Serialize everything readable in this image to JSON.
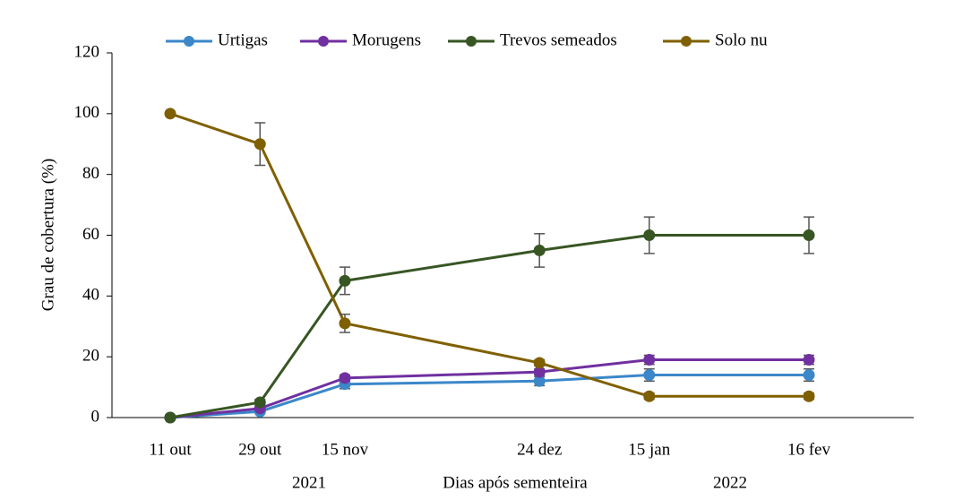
{
  "chart_data": {
    "type": "line",
    "x": [
      "11 out",
      "29 out",
      "15 nov",
      "24 dez",
      "15 jan",
      "16 fev"
    ],
    "year_labels": [
      "2021",
      "2022"
    ],
    "xlabel": "Dias após sementeira",
    "ylabel": "Grau de cobertura (%)",
    "ylim": [
      0,
      120
    ],
    "yticks": [
      0,
      20,
      40,
      60,
      80,
      100,
      120
    ],
    "legend": "top",
    "series": [
      {
        "name": "Urtigas",
        "color": "#3b87c9",
        "values": [
          0,
          2,
          11,
          12,
          14,
          14
        ],
        "errors": [
          0,
          0.5,
          1.5,
          1.5,
          2,
          2
        ]
      },
      {
        "name": "Morugens",
        "color": "#7030a0",
        "values": [
          0,
          3,
          13,
          15,
          19,
          19
        ],
        "errors": [
          0,
          0.5,
          1,
          1,
          1.5,
          1.5
        ]
      },
      {
        "name": "Trevos semeados",
        "color": "#375623",
        "values": [
          0,
          5,
          45,
          55,
          60,
          60
        ],
        "errors": [
          0,
          1,
          4.5,
          5.5,
          6,
          6
        ]
      },
      {
        "name": "Solo nu",
        "color": "#7f6000",
        "values": [
          100,
          90,
          31,
          18,
          7,
          7
        ],
        "errors": [
          0,
          7,
          3,
          1,
          1,
          1
        ]
      }
    ]
  }
}
